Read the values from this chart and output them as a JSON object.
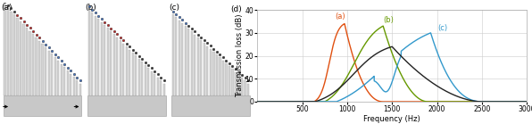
{
  "fig_width": 5.96,
  "fig_height": 1.39,
  "dpi": 100,
  "panels_abc": {
    "n_tubes": 25,
    "duct_color": "#c8c8c8",
    "tube_color": "#d4d4d4",
    "tube_outline": "#aaaaaa",
    "dot_dark": "#333333",
    "dot_red": "#cc2222",
    "dot_blue": "#4477cc"
  },
  "panel_d": {
    "xlabel": "Frequency (Hz)",
    "ylabel": "Transmission loss (dB)",
    "label": "(d)",
    "xlim": [
      0,
      3000
    ],
    "ylim": [
      0,
      40
    ],
    "xticks": [
      500,
      1000,
      1500,
      2000,
      2500,
      3000
    ],
    "yticks": [
      0,
      10,
      20,
      30,
      40
    ],
    "color_black": "#222222",
    "color_orange": "#e05010",
    "color_green": "#669900",
    "color_blue": "#3399cc",
    "grid_color": "#cccccc"
  }
}
